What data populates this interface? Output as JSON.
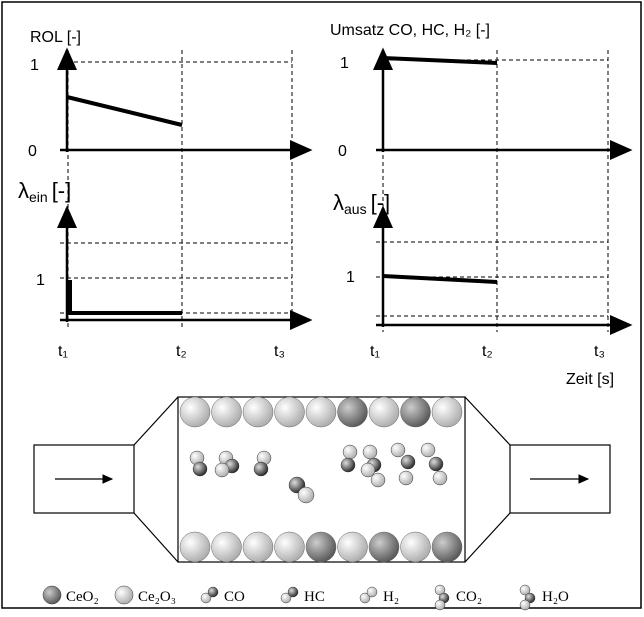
{
  "plots": {
    "rol": {
      "label": "ROL [-]",
      "tick_1": "1",
      "tick_0": "0"
    },
    "umsatz": {
      "label": "Umsatz CO, HC, H₂ [-]",
      "tick_1": "1",
      "tick_0": "0"
    },
    "lambda_ein": {
      "symbol": "λ",
      "sub": "ein",
      "unit": "[-]",
      "tick_1": "1"
    },
    "lambda_aus": {
      "symbol": "λ",
      "sub": "aus",
      "unit": "[-]",
      "tick_1": "1"
    },
    "time_labels": [
      "t₁",
      "t₂",
      "t₃"
    ],
    "time_axis": "Zeit [s]"
  },
  "legend": [
    "CeO₂",
    "Ce₂O₃",
    "CO",
    "HC",
    "H₂",
    "CO₂",
    "H₂O"
  ]
}
